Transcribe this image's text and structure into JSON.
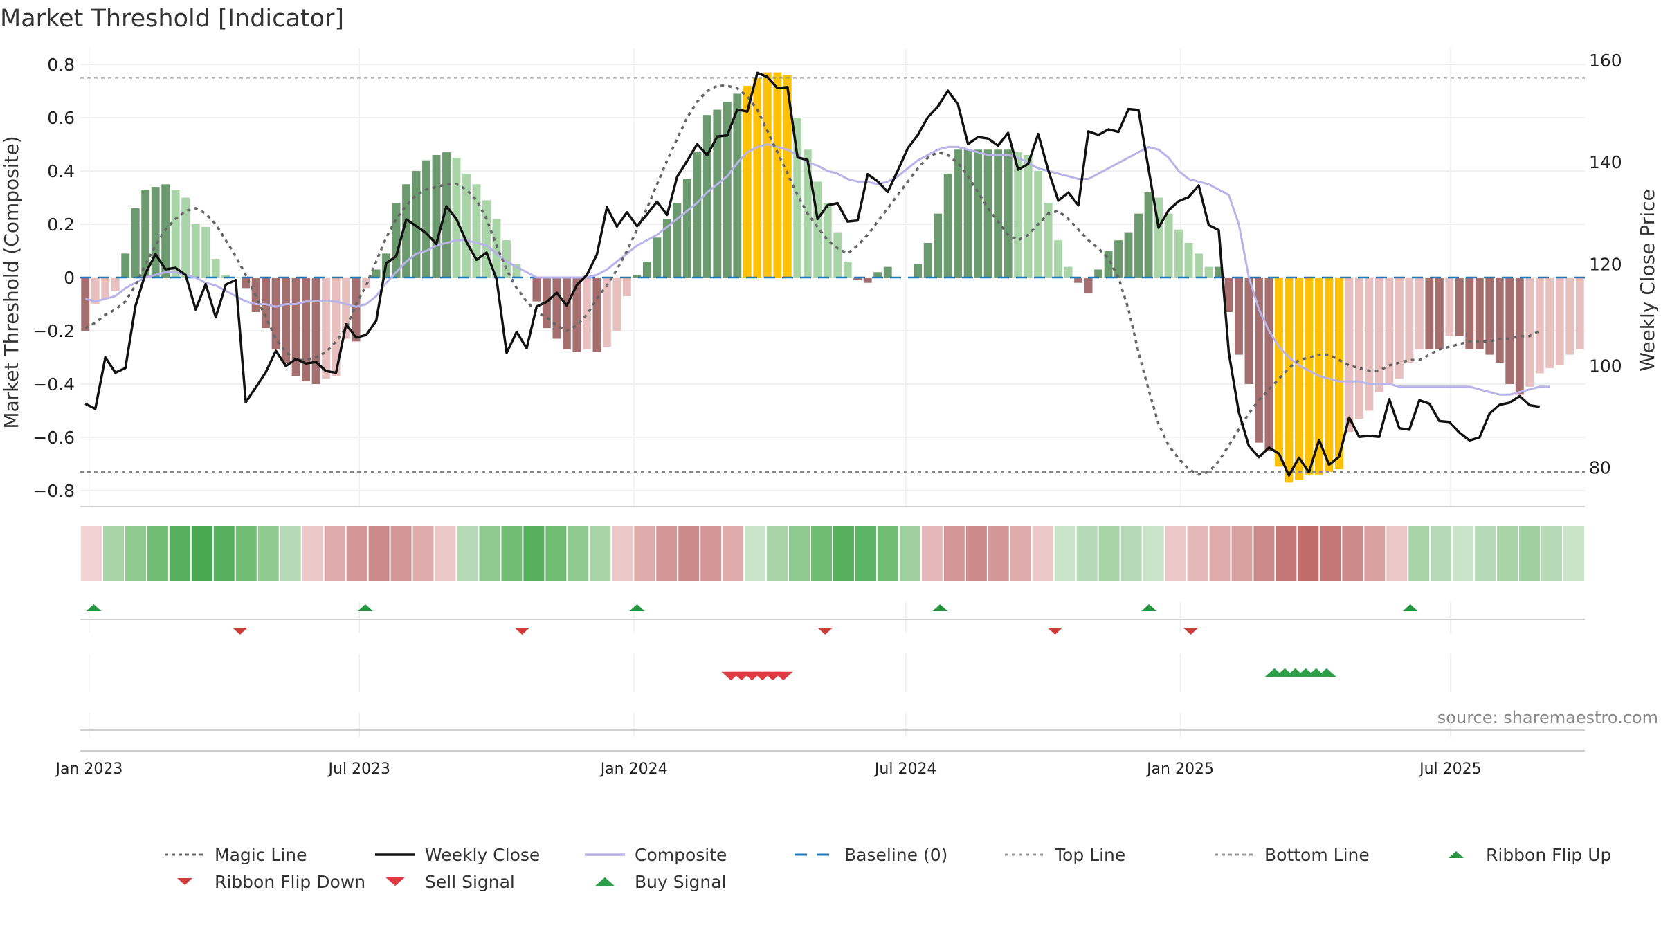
{
  "chart_data": {
    "type": "bar",
    "title": "Market Threshold [Indicator]",
    "ylabel": "Market Threshold (Composite)",
    "ylabel_right": "Weekly Close Price",
    "source_text": "source: sharemaestro.com",
    "ylim": [
      -0.86,
      0.86
    ],
    "ylim_right": [
      73,
      163
    ],
    "x_start": "2022-12-26",
    "x_end": "2025-09-29",
    "yticks": [
      0.8,
      0.6,
      0.4,
      0.2,
      0,
      -0.2,
      -0.4,
      -0.6,
      -0.8
    ],
    "ytick_labels": [
      "0.8",
      "0.6",
      "0.4",
      "0.2",
      "0",
      "−0.2",
      "−0.4",
      "−0.6",
      "−0.8"
    ],
    "yticks_right": [
      160,
      140,
      120,
      100,
      80
    ],
    "xticks": [
      {
        "date": "2023-01-01",
        "label": "Jan 2023"
      },
      {
        "date": "2023-07-01",
        "label": "Jul 2023"
      },
      {
        "date": "2024-01-01",
        "label": "Jan 2024"
      },
      {
        "date": "2024-07-01",
        "label": "Jul 2024"
      },
      {
        "date": "2025-01-01",
        "label": "Jan 2025"
      },
      {
        "date": "2025-07-01",
        "label": "Jul 2025"
      }
    ],
    "grid": true,
    "top_line": 0.75,
    "bottom_line": -0.73,
    "baseline": 0,
    "colors": {
      "bull_dark": "#6b9a6e",
      "bull_mid": "#a8d4a8",
      "bear_dark": "#a56f6f",
      "bear_light": "#e8bfbf",
      "extreme": "#ffc107",
      "weekly_close": "#111111",
      "composite": "#b8b3e8",
      "magic_line": "#666666",
      "baseline": "#1f77b4",
      "buy": "#2e9e4a",
      "sell": "#d63a3a",
      "ribbon_up": "#27953f",
      "ribbon_down": "#d13a3a"
    },
    "series": [
      {
        "name": "Composite Bars",
        "values": [
          -0.2,
          -0.1,
          -0.08,
          -0.05,
          0.09,
          0.26,
          0.33,
          0.34,
          0.35,
          0.33,
          0.3,
          0.2,
          0.19,
          0.07,
          0.01,
          0,
          -0.04,
          -0.13,
          -0.19,
          -0.27,
          -0.32,
          -0.37,
          -0.39,
          -0.4,
          -0.38,
          -0.37,
          -0.23,
          -0.24,
          -0.04,
          0.03,
          0.09,
          0.28,
          0.35,
          0.4,
          0.44,
          0.46,
          0.47,
          0.45,
          0.39,
          0.35,
          0.29,
          0.22,
          0.14,
          0.05,
          0,
          -0.09,
          -0.19,
          -0.23,
          -0.27,
          -0.28,
          -0.27,
          -0.28,
          -0.26,
          -0.2,
          -0.07,
          0.01,
          0.06,
          0.15,
          0.22,
          0.28,
          0.37,
          0.47,
          0.61,
          0.63,
          0.66,
          0.69,
          0.72,
          0.75,
          0.77,
          0.77,
          0.76,
          0.6,
          0.48,
          0.36,
          0.28,
          0.17,
          0.06,
          -0.01,
          -0.02,
          0.02,
          0.04,
          0.0,
          0.0,
          0.05,
          0.13,
          0.24,
          0.39,
          0.48,
          0.48,
          0.48,
          0.48,
          0.48,
          0.48,
          0.47,
          0.46,
          0.4,
          0.28,
          0.14,
          0.04,
          -0.02,
          -0.06,
          0.03,
          0.1,
          0.14,
          0.17,
          0.24,
          0.32,
          0.3,
          0.24,
          0.18,
          0.13,
          0.09,
          0.04,
          0.04,
          -0.13,
          -0.29,
          -0.4,
          -0.62,
          -0.65,
          -0.71,
          -0.77,
          -0.76,
          -0.74,
          -0.74,
          -0.73,
          -0.72,
          -0.58,
          -0.53,
          -0.5,
          -0.43,
          -0.4,
          -0.38,
          -0.32,
          -0.27,
          -0.27,
          -0.27,
          -0.22,
          -0.22,
          -0.27,
          -0.27,
          -0.29,
          -0.32,
          -0.4,
          -0.44,
          -0.41,
          -0.36,
          -0.34,
          -0.33,
          -0.29,
          -0.27
        ]
      },
      {
        "name": "Weekly Close",
        "values": [
          93.2,
          92.2,
          102.3,
          99.3,
          100.2,
          112.4,
          118.8,
          122.6,
          119.6,
          119.9,
          118.5,
          111.7,
          116.7,
          110.2,
          116.6,
          117.5,
          93.5,
          96.4,
          99.4,
          103.6,
          100.6,
          102.0,
          101.1,
          101.4,
          99.6,
          99.3,
          108.8,
          106.2,
          106.7,
          109.5,
          120.8,
          122.2,
          129.4,
          128.1,
          126.7,
          124.6,
          132.0,
          129.5,
          125.0,
          121.5,
          122.9,
          117.7,
          103.2,
          107.3,
          104.1,
          112.3,
          113.2,
          115.0,
          112.5,
          116.5,
          118.5,
          122.5,
          131.8,
          128.0,
          130.8,
          128.1,
          130.4,
          132.9,
          130.3,
          137.8,
          140.9,
          144.2,
          142.0,
          145.7,
          145.9,
          151.0,
          150.6,
          158.2,
          157.4,
          155.2,
          155.4,
          141.6,
          141.1,
          129.5,
          132.2,
          132.6,
          129.0,
          129.2,
          138.3,
          136.9,
          134.8,
          139.0,
          143.4,
          146.0,
          149.5,
          151.6,
          154.7,
          152.0,
          144.2,
          145.6,
          145.3,
          143.9,
          146.4,
          139.2,
          140.3,
          146.2,
          139.1,
          133.1,
          134.7,
          132.2,
          146.7,
          146.0,
          147.1,
          146.6,
          151.1,
          150.9,
          139.4,
          127.8,
          131.2,
          133.0,
          133.8,
          136.1,
          128.3,
          127.3,
          103.2,
          91.5,
          84.9,
          82.7,
          84.6,
          83.4,
          79.1,
          82.6,
          79.7,
          86.1,
          81.2,
          82.8,
          90.5,
          86.7,
          86.9,
          86.7,
          94.1,
          88.4,
          88.1,
          93.9,
          93.2,
          89.8,
          89.6,
          87.5,
          86.0,
          86.6,
          91.3,
          93.0,
          93.4,
          94.7,
          92.9,
          92.6
        ]
      },
      {
        "name": "Composite",
        "values": [
          -0.08,
          -0.09,
          -0.08,
          -0.07,
          -0.04,
          -0.02,
          0.0,
          0.01,
          0.02,
          0.02,
          0.01,
          0.0,
          -0.02,
          -0.03,
          -0.05,
          -0.07,
          -0.09,
          -0.1,
          -0.1,
          -0.11,
          -0.1,
          -0.1,
          -0.09,
          -0.09,
          -0.09,
          -0.09,
          -0.1,
          -0.11,
          -0.1,
          -0.07,
          -0.02,
          0.02,
          0.06,
          0.09,
          0.1,
          0.12,
          0.13,
          0.14,
          0.14,
          0.13,
          0.12,
          0.09,
          0.06,
          0.04,
          0.02,
          0.0,
          0.0,
          0.0,
          0.0,
          0.0,
          0.0,
          0.01,
          0.03,
          0.06,
          0.09,
          0.12,
          0.14,
          0.16,
          0.19,
          0.22,
          0.25,
          0.28,
          0.32,
          0.35,
          0.38,
          0.43,
          0.47,
          0.49,
          0.5,
          0.49,
          0.48,
          0.46,
          0.43,
          0.42,
          0.4,
          0.39,
          0.37,
          0.36,
          0.36,
          0.35,
          0.36,
          0.38,
          0.41,
          0.44,
          0.46,
          0.48,
          0.49,
          0.49,
          0.48,
          0.47,
          0.46,
          0.46,
          0.46,
          0.45,
          0.43,
          0.41,
          0.4,
          0.39,
          0.38,
          0.37,
          0.37,
          0.39,
          0.41,
          0.43,
          0.45,
          0.47,
          0.49,
          0.48,
          0.45,
          0.4,
          0.37,
          0.36,
          0.35,
          0.33,
          0.31,
          0.2,
          0.0,
          -0.12,
          -0.2,
          -0.26,
          -0.3,
          -0.33,
          -0.35,
          -0.37,
          -0.38,
          -0.39,
          -0.39,
          -0.39,
          -0.4,
          -0.4,
          -0.4,
          -0.41,
          -0.41,
          -0.41,
          -0.41,
          -0.41,
          -0.41,
          -0.41,
          -0.41,
          -0.42,
          -0.43,
          -0.44,
          -0.44,
          -0.43,
          -0.42,
          -0.41,
          -0.41
        ]
      },
      {
        "name": "Magic Line",
        "values": [
          -0.19,
          -0.17,
          -0.14,
          -0.12,
          -0.09,
          -0.03,
          0.05,
          0.12,
          0.18,
          0.22,
          0.25,
          0.26,
          0.24,
          0.2,
          0.14,
          0.08,
          0.01,
          -0.07,
          -0.15,
          -0.23,
          -0.28,
          -0.31,
          -0.31,
          -0.3,
          -0.28,
          -0.24,
          -0.19,
          -0.1,
          -0.03,
          0.06,
          0.15,
          0.22,
          0.27,
          0.31,
          0.33,
          0.34,
          0.35,
          0.35,
          0.33,
          0.29,
          0.22,
          0.12,
          0.03,
          -0.04,
          -0.09,
          -0.13,
          -0.15,
          -0.18,
          -0.2,
          -0.18,
          -0.14,
          -0.08,
          -0.03,
          0.03,
          0.1,
          0.18,
          0.26,
          0.35,
          0.44,
          0.52,
          0.6,
          0.66,
          0.7,
          0.72,
          0.72,
          0.71,
          0.68,
          0.63,
          0.55,
          0.47,
          0.39,
          0.31,
          0.24,
          0.19,
          0.14,
          0.11,
          0.09,
          0.12,
          0.16,
          0.21,
          0.26,
          0.31,
          0.36,
          0.41,
          0.45,
          0.47,
          0.46,
          0.43,
          0.38,
          0.32,
          0.26,
          0.21,
          0.16,
          0.14,
          0.16,
          0.2,
          0.24,
          0.25,
          0.22,
          0.18,
          0.14,
          0.11,
          0.07,
          0.0,
          -0.12,
          -0.28,
          -0.42,
          -0.55,
          -0.63,
          -0.68,
          -0.72,
          -0.74,
          -0.73,
          -0.69,
          -0.63,
          -0.57,
          -0.51,
          -0.46,
          -0.42,
          -0.38,
          -0.34,
          -0.31,
          -0.3,
          -0.29,
          -0.29,
          -0.31,
          -0.33,
          -0.34,
          -0.35,
          -0.35,
          -0.33,
          -0.32,
          -0.31,
          -0.31,
          -0.29,
          -0.27,
          -0.26,
          -0.25,
          -0.24,
          -0.24,
          -0.24,
          -0.23,
          -0.23,
          -0.22,
          -0.22,
          -0.2
        ]
      }
    ],
    "ribbon_flip_up": [
      "2023-01-04",
      "2023-07-05",
      "2024-01-03",
      "2024-07-24",
      "2024-12-11",
      "2025-06-04"
    ],
    "ribbon_flip_down": [
      "2023-04-12",
      "2023-10-18",
      "2024-05-08",
      "2024-10-09",
      "2025-01-08"
    ],
    "sell_signals": [
      "2024-03-06",
      "2024-03-13",
      "2024-03-20",
      "2024-03-27",
      "2024-04-03",
      "2024-04-10"
    ],
    "buy_signals": [
      "2025-03-05",
      "2025-03-12",
      "2025-03-19",
      "2025-03-26",
      "2025-04-02",
      "2025-04-09"
    ],
    "ribbon_colors": [
      "#f1d1d1",
      "#a8d4a8",
      "#8ec98e",
      "#71bd74",
      "#56b05e",
      "#4aa853",
      "#56b05e",
      "#71bd74",
      "#8ec98e",
      "#b5dab5",
      "#ecc7c7",
      "#dfaaaa",
      "#d49696",
      "#cd8a8a",
      "#d49696",
      "#dfaaaa",
      "#ecc7c7",
      "#b5dab5",
      "#8ec98e",
      "#71bd74",
      "#56b05e",
      "#71bd74",
      "#8ec98e",
      "#a8d4a8",
      "#ecc7c7",
      "#dfaaaa",
      "#d49696",
      "#cd8a8a",
      "#d49696",
      "#dfaaaa",
      "#c9e5c9",
      "#a8d4a8",
      "#8ec98e",
      "#6dbc71",
      "#56b05e",
      "#5ab463",
      "#71bd74",
      "#a0d0a0",
      "#e4b8b8",
      "#d49696",
      "#cd8a8a",
      "#d49696",
      "#dfaaaa",
      "#ecc7c7",
      "#c9e5c9",
      "#b5dab5",
      "#a8d4a8",
      "#b5dab5",
      "#c9e5c9",
      "#ecc7c7",
      "#e4b8b8",
      "#dfaaaa",
      "#d9a0a0",
      "#cd8a8a",
      "#c57777",
      "#c06a6a",
      "#c57777",
      "#cd8a8a",
      "#d9a0a0",
      "#ecc7c7",
      "#a8d4a8",
      "#b5dab5",
      "#c9e5c9",
      "#b5dab5",
      "#a8d4a8",
      "#a0d0a0",
      "#b5dab5",
      "#c9e5c9"
    ],
    "legend": [
      {
        "label": "Magic Line",
        "kind": "dotted",
        "color": "#666666"
      },
      {
        "label": "Weekly Close",
        "kind": "solid",
        "color": "#111111"
      },
      {
        "label": "Composite",
        "kind": "solid",
        "color": "#b8b3e8"
      },
      {
        "label": "Baseline (0)",
        "kind": "dashed",
        "color": "#1f77b4"
      },
      {
        "label": "Top Line",
        "kind": "dotted",
        "color": "#999999"
      },
      {
        "label": "Bottom Line",
        "kind": "dotted",
        "color": "#999999"
      },
      {
        "label": "Ribbon Flip Up",
        "kind": "tri-up",
        "color": "#27953f"
      },
      {
        "label": "Ribbon Flip Down",
        "kind": "tri-down",
        "color": "#d13a3a"
      },
      {
        "label": "Sell Signal",
        "kind": "tri-down-big",
        "color": "#e03a45"
      },
      {
        "label": "Buy Signal",
        "kind": "tri-up-big",
        "color": "#2e9e4a"
      }
    ]
  }
}
